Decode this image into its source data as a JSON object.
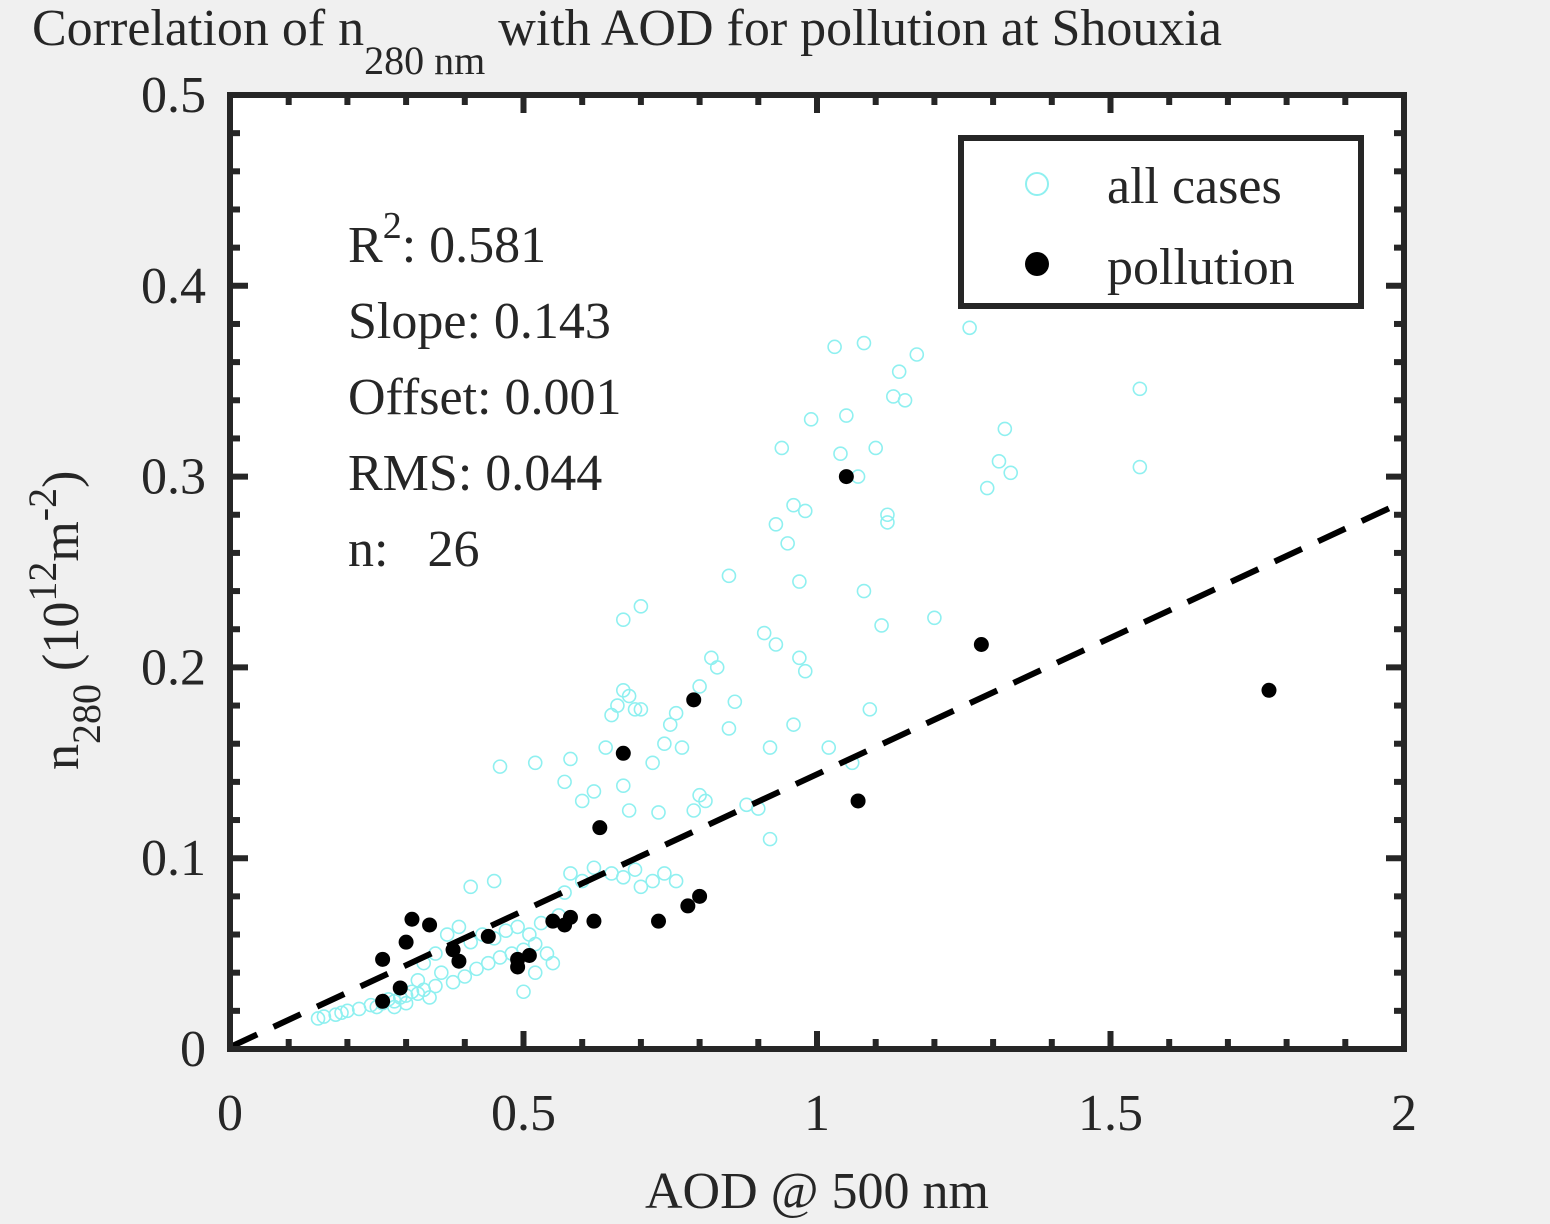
{
  "chart_data": {
    "type": "scatter",
    "title": {
      "prefix": "Correlation of n",
      "sub": "280 nm",
      "suffix": " with AOD for pollution at Shouxia"
    },
    "xlabel": "AOD @ 500 nm",
    "ylabel": {
      "base": "n",
      "sub": "280",
      "unit_open": " (10",
      "sup1": "12",
      "unit_mid": "m",
      "sup2": "-2",
      "unit_close": ")"
    },
    "xlim": [
      0,
      2
    ],
    "ylim": [
      0,
      0.5
    ],
    "xticks": [
      0,
      0.5,
      1,
      1.5,
      2
    ],
    "xtick_labels": [
      "0",
      "0.5",
      "1",
      "1.5",
      "2"
    ],
    "yticks": [
      0,
      0.1,
      0.2,
      0.3,
      0.4,
      0.5
    ],
    "ytick_labels": [
      "0",
      "0.1",
      "0.2",
      "0.3",
      "0.4",
      "0.5"
    ],
    "grid": false,
    "legend_position": "top-right",
    "stats": {
      "r2_label": "R",
      "r2_sup": "2",
      "r2_value": ": 0.581",
      "slope": "Slope: 0.143",
      "offset": "Offset: 0.001",
      "rms": "RMS: 0.044",
      "n": "n:   26"
    },
    "fit_line": {
      "slope": 0.143,
      "offset": 0.001,
      "style": "dashed",
      "color": "#000000"
    },
    "series": [
      {
        "name": "all cases",
        "marker": "open-circle",
        "color": "#8ff0f0",
        "points": [
          [
            0.15,
            0.016
          ],
          [
            0.16,
            0.017
          ],
          [
            0.18,
            0.018
          ],
          [
            0.19,
            0.019
          ],
          [
            0.2,
            0.02
          ],
          [
            0.22,
            0.021
          ],
          [
            0.24,
            0.023
          ],
          [
            0.25,
            0.022
          ],
          [
            0.26,
            0.024
          ],
          [
            0.27,
            0.026
          ],
          [
            0.28,
            0.025
          ],
          [
            0.29,
            0.027
          ],
          [
            0.3,
            0.028
          ],
          [
            0.31,
            0.03
          ],
          [
            0.32,
            0.029
          ],
          [
            0.33,
            0.031
          ],
          [
            0.34,
            0.027
          ],
          [
            0.35,
            0.033
          ],
          [
            0.28,
            0.022
          ],
          [
            0.3,
            0.024
          ],
          [
            0.32,
            0.036
          ],
          [
            0.36,
            0.04
          ],
          [
            0.38,
            0.035
          ],
          [
            0.4,
            0.038
          ],
          [
            0.42,
            0.042
          ],
          [
            0.44,
            0.045
          ],
          [
            0.46,
            0.048
          ],
          [
            0.48,
            0.05
          ],
          [
            0.5,
            0.052
          ],
          [
            0.52,
            0.055
          ],
          [
            0.33,
            0.045
          ],
          [
            0.35,
            0.05
          ],
          [
            0.37,
            0.06
          ],
          [
            0.39,
            0.064
          ],
          [
            0.41,
            0.056
          ],
          [
            0.43,
            0.06
          ],
          [
            0.45,
            0.058
          ],
          [
            0.47,
            0.062
          ],
          [
            0.49,
            0.064
          ],
          [
            0.51,
            0.06
          ],
          [
            0.53,
            0.066
          ],
          [
            0.55,
            0.045
          ],
          [
            0.41,
            0.085
          ],
          [
            0.45,
            0.088
          ],
          [
            0.5,
            0.03
          ],
          [
            0.52,
            0.04
          ],
          [
            0.54,
            0.05
          ],
          [
            0.56,
            0.07
          ],
          [
            0.57,
            0.082
          ],
          [
            0.58,
            0.092
          ],
          [
            0.6,
            0.088
          ],
          [
            0.62,
            0.095
          ],
          [
            0.65,
            0.092
          ],
          [
            0.67,
            0.09
          ],
          [
            0.69,
            0.094
          ],
          [
            0.7,
            0.085
          ],
          [
            0.72,
            0.088
          ],
          [
            0.74,
            0.092
          ],
          [
            0.76,
            0.088
          ],
          [
            0.52,
            0.15
          ],
          [
            0.46,
            0.148
          ],
          [
            0.57,
            0.14
          ],
          [
            0.58,
            0.152
          ],
          [
            0.6,
            0.13
          ],
          [
            0.62,
            0.135
          ],
          [
            0.64,
            0.158
          ],
          [
            0.65,
            0.175
          ],
          [
            0.66,
            0.18
          ],
          [
            0.67,
            0.188
          ],
          [
            0.68,
            0.185
          ],
          [
            0.69,
            0.178
          ],
          [
            0.7,
            0.178
          ],
          [
            0.67,
            0.138
          ],
          [
            0.68,
            0.125
          ],
          [
            0.72,
            0.15
          ],
          [
            0.74,
            0.16
          ],
          [
            0.75,
            0.17
          ],
          [
            0.76,
            0.176
          ],
          [
            0.73,
            0.124
          ],
          [
            0.77,
            0.158
          ],
          [
            0.79,
            0.125
          ],
          [
            0.8,
            0.133
          ],
          [
            0.81,
            0.13
          ],
          [
            0.8,
            0.19
          ],
          [
            0.82,
            0.205
          ],
          [
            0.83,
            0.2
          ],
          [
            0.85,
            0.168
          ],
          [
            0.86,
            0.182
          ],
          [
            0.85,
            0.248
          ],
          [
            0.88,
            0.128
          ],
          [
            0.9,
            0.126
          ],
          [
            0.91,
            0.218
          ],
          [
            0.92,
            0.158
          ],
          [
            0.93,
            0.212
          ],
          [
            0.95,
            0.265
          ],
          [
            0.96,
            0.285
          ],
          [
            0.97,
            0.245
          ],
          [
            0.98,
            0.282
          ],
          [
            0.99,
            0.33
          ],
          [
            0.93,
            0.275
          ],
          [
            0.94,
            0.315
          ],
          [
            0.96,
            0.17
          ],
          [
            0.97,
            0.205
          ],
          [
            0.98,
            0.198
          ],
          [
            0.92,
            0.11
          ],
          [
            1.02,
            0.158
          ],
          [
            1.03,
            0.368
          ],
          [
            1.04,
            0.312
          ],
          [
            1.05,
            0.332
          ],
          [
            1.06,
            0.15
          ],
          [
            1.07,
            0.3
          ],
          [
            1.08,
            0.24
          ],
          [
            1.08,
            0.37
          ],
          [
            1.09,
            0.178
          ],
          [
            1.1,
            0.315
          ],
          [
            1.11,
            0.222
          ],
          [
            1.12,
            0.28
          ],
          [
            1.12,
            0.276
          ],
          [
            1.13,
            0.342
          ],
          [
            1.14,
            0.355
          ],
          [
            1.15,
            0.34
          ],
          [
            1.17,
            0.364
          ],
          [
            1.2,
            0.226
          ],
          [
            1.26,
            0.378
          ],
          [
            1.29,
            0.294
          ],
          [
            1.31,
            0.308
          ],
          [
            1.32,
            0.325
          ],
          [
            1.33,
            0.302
          ],
          [
            1.55,
            0.346
          ],
          [
            1.55,
            0.305
          ],
          [
            0.7,
            0.232
          ],
          [
            0.67,
            0.225
          ]
        ]
      },
      {
        "name": "pollution",
        "marker": "filled-circle",
        "color": "#000000",
        "points": [
          [
            0.26,
            0.047
          ],
          [
            0.26,
            0.025
          ],
          [
            0.29,
            0.032
          ],
          [
            0.3,
            0.056
          ],
          [
            0.31,
            0.068
          ],
          [
            0.34,
            0.065
          ],
          [
            0.38,
            0.052
          ],
          [
            0.39,
            0.046
          ],
          [
            0.44,
            0.059
          ],
          [
            0.49,
            0.043
          ],
          [
            0.49,
            0.047
          ],
          [
            0.51,
            0.049
          ],
          [
            0.55,
            0.067
          ],
          [
            0.57,
            0.065
          ],
          [
            0.58,
            0.069
          ],
          [
            0.62,
            0.067
          ],
          [
            0.63,
            0.116
          ],
          [
            0.67,
            0.155
          ],
          [
            0.73,
            0.067
          ],
          [
            0.78,
            0.075
          ],
          [
            0.79,
            0.183
          ],
          [
            0.8,
            0.08
          ],
          [
            1.05,
            0.3
          ],
          [
            1.07,
            0.13
          ],
          [
            1.28,
            0.212
          ],
          [
            1.77,
            0.188
          ]
        ]
      }
    ]
  }
}
